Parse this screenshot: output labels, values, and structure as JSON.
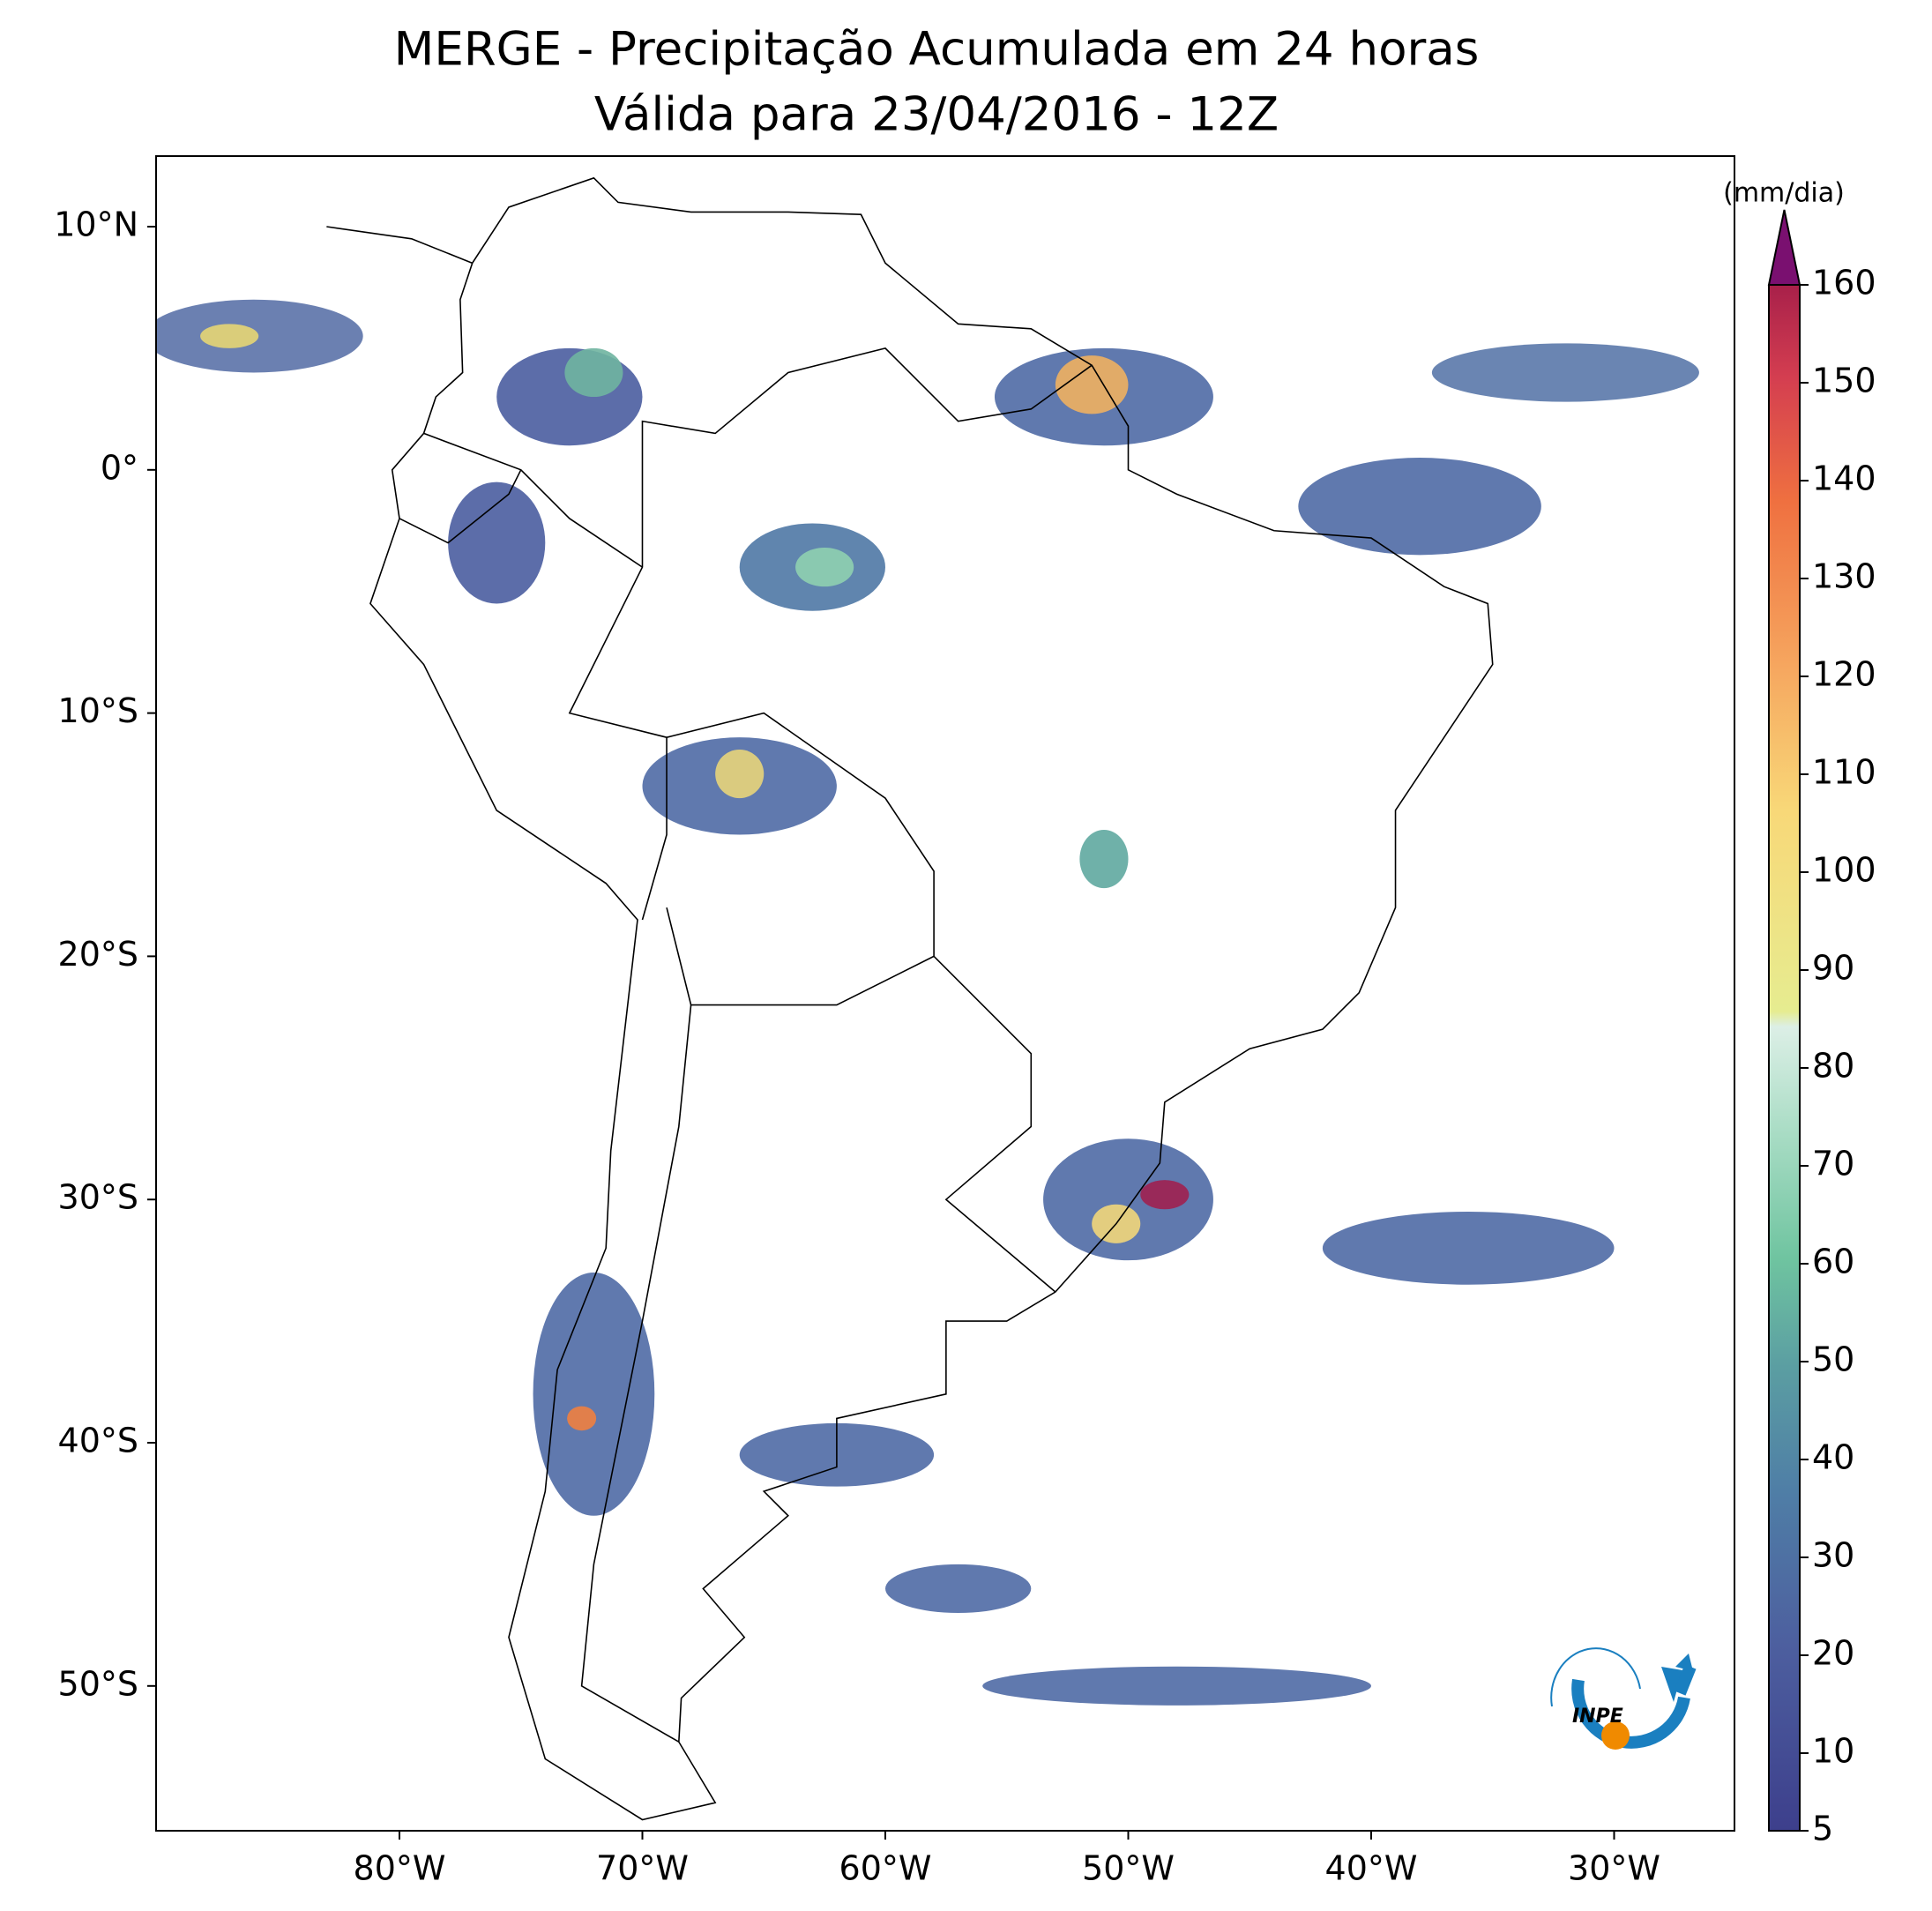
{
  "title": "MERGE - Precipitação Acumulada em 24 horas",
  "subtitle": "Válida para 23/04/2016 - 12Z",
  "map": {
    "lat_labels": [
      "10°N",
      "0°",
      "10°S",
      "20°S",
      "30°S",
      "40°S",
      "50°S"
    ],
    "lon_labels": [
      "80°W",
      "70°W",
      "60°W",
      "50°W",
      "40°W",
      "30°W"
    ]
  },
  "colorbar": {
    "unit": "(mm/dia)",
    "ticks": [
      5,
      10,
      20,
      30,
      40,
      50,
      60,
      70,
      80,
      90,
      100,
      110,
      120,
      130,
      140,
      150,
      160
    ]
  },
  "logo": "INPE"
}
